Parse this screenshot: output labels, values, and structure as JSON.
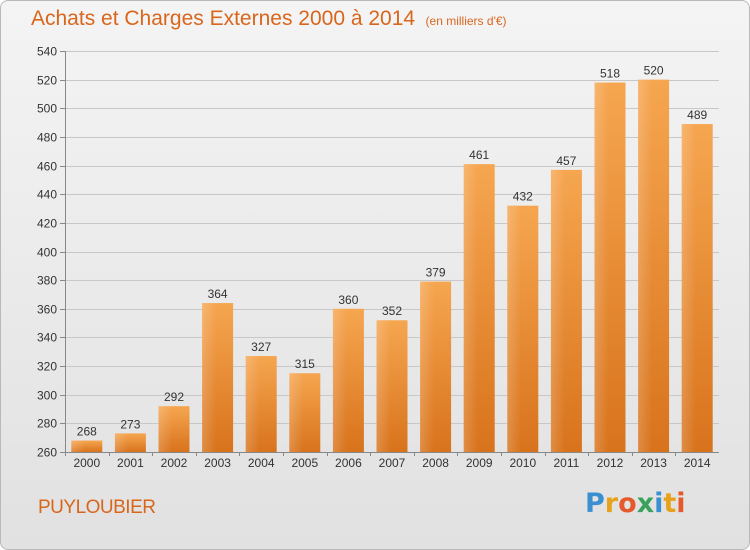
{
  "header": {
    "title": "Achats et Charges Externes 2000 à 2014",
    "subtitle": "(en milliers d'€)"
  },
  "footer": {
    "location": "PUYLOUBIER",
    "brand_letters": [
      "P",
      "r",
      "o",
      "x",
      "i",
      "t",
      "i"
    ],
    "brand_colors": [
      "#3a8fd0",
      "#e7a21c",
      "#e55a2b",
      "#3aa35b",
      "#3a8fd0",
      "#e7a21c",
      "#e55a2b"
    ]
  },
  "chart_data": {
    "type": "bar",
    "categories": [
      "2000",
      "2001",
      "2002",
      "2003",
      "2004",
      "2005",
      "2006",
      "2007",
      "2008",
      "2009",
      "2010",
      "2011",
      "2012",
      "2013",
      "2014"
    ],
    "values": [
      268,
      273,
      292,
      364,
      327,
      315,
      360,
      352,
      379,
      461,
      432,
      457,
      518,
      520,
      489
    ],
    "ylim": [
      260,
      540
    ],
    "yticks": [
      260,
      280,
      300,
      320,
      340,
      360,
      380,
      400,
      420,
      440,
      460,
      480,
      500,
      520,
      540
    ],
    "grid": true,
    "bar_color": "#f0923a"
  }
}
